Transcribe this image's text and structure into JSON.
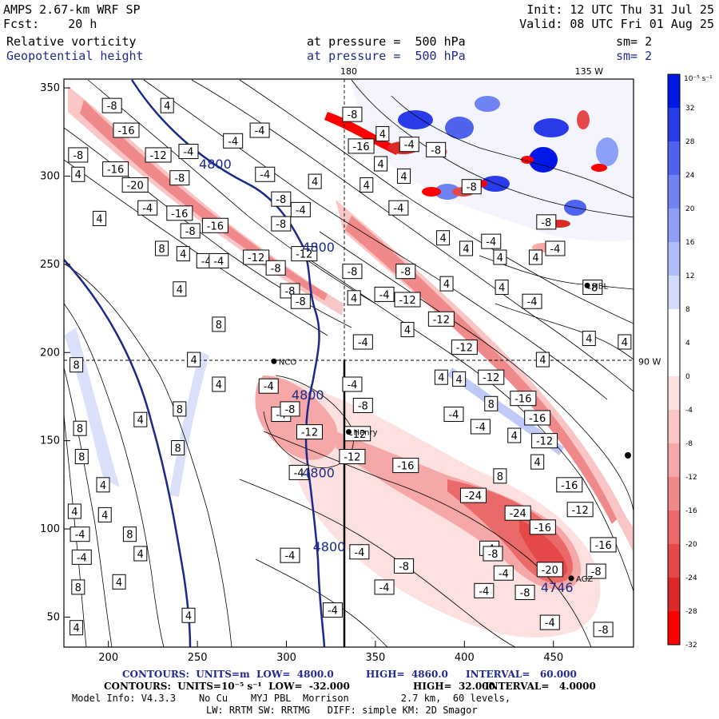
{
  "header": {
    "model": "AMPS 2.67-km WRF SP",
    "forecast": "Fcst:    20 h",
    "init": "Init: 12 UTC Thu 31 Jul 25",
    "valid": "Valid: 08 UTC Fri 01 Aug 25",
    "field1_name": "Relative vorticity",
    "field1_level": "at pressure =  500 hPa",
    "field1_sm": "sm= 2",
    "field2_name": "Geopotential height",
    "field2_level": "at pressure =  500 hPa",
    "field2_sm": "sm= 2"
  },
  "map": {
    "x_axis": {
      "range": [
        175,
        495
      ],
      "ticks": [
        "200",
        "250",
        "300",
        "350",
        "400",
        "450"
      ],
      "tick_values": [
        200,
        250,
        300,
        350,
        400,
        450
      ]
    },
    "y_axis": {
      "range": [
        33,
        355
      ],
      "ticks": [
        "50",
        "100",
        "150",
        "200",
        "250",
        "300",
        "350"
      ],
      "tick_values": [
        50,
        100,
        150,
        200,
        250,
        300,
        350
      ]
    },
    "longitude_labels": [
      {
        "text": "180",
        "x": 335,
        "y": 355
      },
      {
        "text": "135 W",
        "x": 470,
        "y": 355
      },
      {
        "text": "90 W",
        "x": 495,
        "y": 195
      }
    ],
    "stations": [
      {
        "name": "NCO",
        "x": 293,
        "y": 195
      },
      {
        "name": "Henry",
        "x": 335,
        "y": 155
      },
      {
        "name": "HBL",
        "x": 469,
        "y": 238
      },
      {
        "name": "AGZ",
        "x": 460,
        "y": 72
      }
    ],
    "height_labels": [
      {
        "text": "4800",
        "x": 260,
        "y": 307
      },
      {
        "text": "4800",
        "x": 318,
        "y": 260
      },
      {
        "text": "4800",
        "x": 312,
        "y": 176
      },
      {
        "text": "4800",
        "x": 318,
        "y": 132
      },
      {
        "text": "4800",
        "x": 324,
        "y": 90
      },
      {
        "text": "4746",
        "x": 452,
        "y": 67
      }
    ],
    "vort_labels": [
      {
        "t": "-8",
        "x": 202,
        "y": 340
      },
      {
        "t": "4",
        "x": 233,
        "y": 340
      },
      {
        "t": "-16",
        "x": 210,
        "y": 326
      },
      {
        "t": "-4",
        "x": 270,
        "y": 320
      },
      {
        "t": "-4",
        "x": 285,
        "y": 326
      },
      {
        "t": "-8",
        "x": 183,
        "y": 312
      },
      {
        "t": "-12",
        "x": 228,
        "y": 312
      },
      {
        "t": "-4",
        "x": 245,
        "y": 314
      },
      {
        "t": "-16",
        "x": 204,
        "y": 304
      },
      {
        "t": "4",
        "x": 183,
        "y": 301
      },
      {
        "t": "-8",
        "x": 240,
        "y": 299
      },
      {
        "t": "-4",
        "x": 288,
        "y": 301
      },
      {
        "t": "-20",
        "x": 215,
        "y": 295
      },
      {
        "t": "4",
        "x": 316,
        "y": 297
      },
      {
        "t": "-8",
        "x": 297,
        "y": 287
      },
      {
        "t": "4",
        "x": 345,
        "y": 295
      },
      {
        "t": "-4",
        "x": 222,
        "y": 282
      },
      {
        "t": "-16",
        "x": 240,
        "y": 279
      },
      {
        "t": "-4",
        "x": 308,
        "y": 281
      },
      {
        "t": "4",
        "x": 195,
        "y": 276
      },
      {
        "t": "-8",
        "x": 297,
        "y": 273
      },
      {
        "t": "-16",
        "x": 260,
        "y": 272
      },
      {
        "t": "-8",
        "x": 246,
        "y": 269
      },
      {
        "t": "8",
        "x": 230,
        "y": 259
      },
      {
        "t": "4",
        "x": 242,
        "y": 256
      },
      {
        "t": "-12",
        "x": 310,
        "y": 256
      },
      {
        "t": "-12",
        "x": 283,
        "y": 254
      },
      {
        "t": "-4",
        "x": 255,
        "y": 252
      },
      {
        "t": "-4",
        "x": 262,
        "y": 252
      },
      {
        "t": "-8",
        "x": 294,
        "y": 248
      },
      {
        "t": "4",
        "x": 240,
        "y": 236
      },
      {
        "t": "-8",
        "x": 302,
        "y": 235
      },
      {
        "t": "-8",
        "x": 308,
        "y": 229
      },
      {
        "t": "4",
        "x": 338,
        "y": 231
      },
      {
        "t": "-4",
        "x": 355,
        "y": 233
      },
      {
        "t": "-12",
        "x": 368,
        "y": 230
      },
      {
        "t": "-8",
        "x": 337,
        "y": 246
      },
      {
        "t": "-8",
        "x": 367,
        "y": 246
      },
      {
        "t": "4",
        "x": 390,
        "y": 239
      },
      {
        "t": "4",
        "x": 421,
        "y": 237
      },
      {
        "t": "-4",
        "x": 438,
        "y": 229
      },
      {
        "t": "-12",
        "x": 387,
        "y": 219
      },
      {
        "t": "8",
        "x": 262,
        "y": 216
      },
      {
        "t": "4",
        "x": 368,
        "y": 213
      },
      {
        "t": "-4",
        "x": 343,
        "y": 206
      },
      {
        "t": "-12",
        "x": 400,
        "y": 203
      },
      {
        "t": "4",
        "x": 470,
        "y": 208
      },
      {
        "t": "4",
        "x": 490,
        "y": 206
      },
      {
        "t": "8",
        "x": 182,
        "y": 193
      },
      {
        "t": "4",
        "x": 248,
        "y": 196
      },
      {
        "t": "4",
        "x": 444,
        "y": 196
      },
      {
        "t": "4",
        "x": 397,
        "y": 185
      },
      {
        "t": "4",
        "x": 387,
        "y": 186
      },
      {
        "t": "-12",
        "x": 415,
        "y": 186
      },
      {
        "t": "-4",
        "x": 337,
        "y": 182
      },
      {
        "t": "4",
        "x": 262,
        "y": 182
      },
      {
        "t": "-4",
        "x": 290,
        "y": 181
      },
      {
        "t": "8",
        "x": 415,
        "y": 171
      },
      {
        "t": "-16",
        "x": 433,
        "y": 174
      },
      {
        "t": "-8",
        "x": 343,
        "y": 170
      },
      {
        "t": "8",
        "x": 240,
        "y": 168
      },
      {
        "t": "-4",
        "x": 297,
        "y": 165
      },
      {
        "t": "-8",
        "x": 302,
        "y": 168
      },
      {
        "t": "-4",
        "x": 394,
        "y": 165
      },
      {
        "t": "-16",
        "x": 441,
        "y": 163
      },
      {
        "t": "8",
        "x": 184,
        "y": 157
      },
      {
        "t": "4",
        "x": 218,
        "y": 162
      },
      {
        "t": "-4",
        "x": 409,
        "y": 158
      },
      {
        "t": "-12",
        "x": 340,
        "y": 154
      },
      {
        "t": "-12",
        "x": 313,
        "y": 155
      },
      {
        "t": "4",
        "x": 428,
        "y": 153
      },
      {
        "t": "-12",
        "x": 445,
        "y": 150
      },
      {
        "t": "8",
        "x": 239,
        "y": 146
      },
      {
        "t": "8",
        "x": 185,
        "y": 141
      },
      {
        "t": "-16",
        "x": 367,
        "y": 136
      },
      {
        "t": "-12",
        "x": 337,
        "y": 141
      },
      {
        "t": "4",
        "x": 441,
        "y": 138
      },
      {
        "t": "-4",
        "x": 307,
        "y": 132
      },
      {
        "t": "8",
        "x": 420,
        "y": 130
      },
      {
        "t": "-16",
        "x": 459,
        "y": 125
      },
      {
        "t": "4",
        "x": 197,
        "y": 125
      },
      {
        "t": "-24",
        "x": 405,
        "y": 119
      },
      {
        "t": "4",
        "x": 198,
        "y": 108
      },
      {
        "t": "-12",
        "x": 465,
        "y": 111
      },
      {
        "t": "-24",
        "x": 430,
        "y": 109
      },
      {
        "t": "4",
        "x": 181,
        "y": 110
      },
      {
        "t": "8",
        "x": 212,
        "y": 97
      },
      {
        "t": "-16",
        "x": 444,
        "y": 101
      },
      {
        "t": "-4",
        "x": 184,
        "y": 97
      },
      {
        "t": "-4",
        "x": 414,
        "y": 89
      },
      {
        "t": "-8",
        "x": 416,
        "y": 86
      },
      {
        "t": "4",
        "x": 218,
        "y": 86
      },
      {
        "t": "-4",
        "x": 302,
        "y": 85
      },
      {
        "t": "-4",
        "x": 341,
        "y": 87
      },
      {
        "t": "-4",
        "x": 185,
        "y": 84
      },
      {
        "t": "-16",
        "x": 478,
        "y": 91
      },
      {
        "t": "-8",
        "x": 366,
        "y": 79
      },
      {
        "t": "-4",
        "x": 422,
        "y": 75
      },
      {
        "t": "-20",
        "x": 448,
        "y": 77
      },
      {
        "t": "-8",
        "x": 474,
        "y": 76
      },
      {
        "t": "4",
        "x": 206,
        "y": 70
      },
      {
        "t": "8",
        "x": 183,
        "y": 67
      },
      {
        "t": "-4",
        "x": 355,
        "y": 67
      },
      {
        "t": "-4",
        "x": 411,
        "y": 65
      },
      {
        "t": "-8",
        "x": 434,
        "y": 64
      },
      {
        "t": "4",
        "x": 245,
        "y": 51
      },
      {
        "t": "-4",
        "x": 326,
        "y": 54
      },
      {
        "t": "-4",
        "x": 448,
        "y": 47
      },
      {
        "t": "4",
        "x": 182,
        "y": 44
      },
      {
        "t": "-8",
        "x": 478,
        "y": 43
      },
      {
        "t": "-8",
        "x": 337,
        "y": 335
      },
      {
        "t": "4",
        "x": 354,
        "y": 324
      },
      {
        "t": "-16",
        "x": 342,
        "y": 317
      },
      {
        "t": "-4",
        "x": 369,
        "y": 318
      },
      {
        "t": "-8",
        "x": 384,
        "y": 315
      },
      {
        "t": "4",
        "x": 353,
        "y": 307
      },
      {
        "t": "4",
        "x": 366,
        "y": 300
      },
      {
        "t": "-8",
        "x": 404,
        "y": 294
      },
      {
        "t": "-4",
        "x": 363,
        "y": 282
      },
      {
        "t": "4",
        "x": 401,
        "y": 259
      },
      {
        "t": "4",
        "x": 388,
        "y": 265
      },
      {
        "t": "-4",
        "x": 415,
        "y": 263
      },
      {
        "t": "-8",
        "x": 446,
        "y": 274
      },
      {
        "t": "-4",
        "x": 451,
        "y": 259
      },
      {
        "t": "4",
        "x": 420,
        "y": 254
      },
      {
        "t": "4",
        "x": 440,
        "y": 254
      },
      {
        "t": "-8",
        "x": 472,
        "y": 237
      }
    ]
  },
  "colorbar": {
    "unit_label": "10⁻⁵ s⁻¹",
    "labels": [
      "32",
      "28",
      "24",
      "20",
      "16",
      "12",
      "8",
      "4",
      "0",
      "-4",
      "-8",
      "-12",
      "-16",
      "-20",
      "-24",
      "-28",
      "-32"
    ],
    "colors": [
      "#0018e6",
      "#2a3be9",
      "#4f63ee",
      "#6f83f2",
      "#8ea0f5",
      "#b0bdf8",
      "#d2daf9",
      "#ffffff",
      "#ffffff",
      "#fde0e0",
      "#fac5c5",
      "#f6a8a8",
      "#f08a8a",
      "#ea6a6a",
      "#e44848",
      "#dd2828",
      "#ff0000"
    ]
  },
  "footer": {
    "line1_left": "CONTOURS:  UNITS=m  LOW=  4800.0",
    "line1_mid": "HIGH=  4860.0",
    "line1_right": "INTERVAL=   60.000",
    "line2_left": "CONTOURS:  UNITS=10⁻⁵ s⁻¹  LOW=  -32.000",
    "line2_mid": "HIGH=  32.000",
    "line2_right": "INTERVAL=   4.0000",
    "line3": "Model Info: V4.3.3    No Cu    MYJ PBL  Morrison         2.7 km,  60 levels,",
    "line4": "LW: RRTM SW: RRTMG   DIFF: simple KM: 2D Smagor"
  },
  "colors": {
    "height_contour": "#1a2a8a",
    "positive": "#2a3be9",
    "negative": "#e03030"
  }
}
